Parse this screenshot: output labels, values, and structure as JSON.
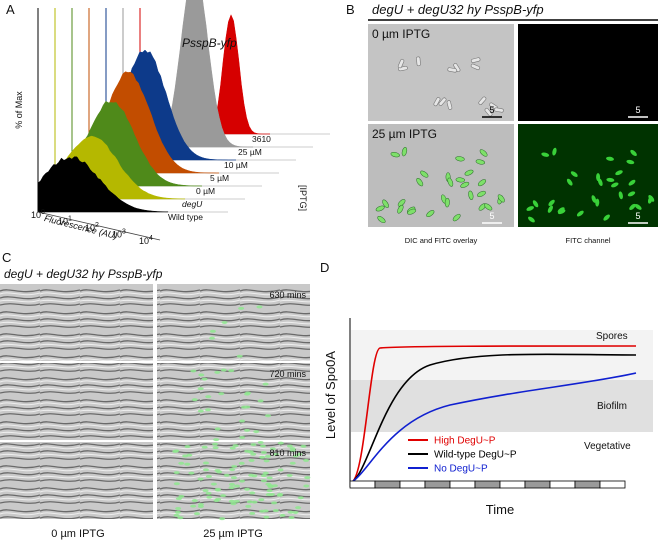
{
  "panel_a": {
    "letter": "A",
    "label": "PsspB-yfp",
    "y_axis": "% of Max",
    "x_axis": "Fluorescence (AU)",
    "x_ticks": [
      {
        "base": "10",
        "exp": "0"
      },
      {
        "base": "10",
        "exp": "1"
      },
      {
        "base": "10",
        "exp": "2"
      },
      {
        "base": "10",
        "exp": "3"
      },
      {
        "base": "10",
        "exp": "4"
      }
    ],
    "depth_labels": [
      "3610",
      "25 µM",
      "10 µM",
      "5 µM",
      "0 µM",
      "degU",
      "Wild type"
    ],
    "depth_axis": "[IPTG]"
  },
  "panel_b": {
    "letter": "B",
    "title": "degU + degU32 hy  PsspB-yfp",
    "row_labels": [
      "0 µm IPTG",
      "25 µm IPTG"
    ],
    "scale_label": "5",
    "captions": [
      "DIC and FITC overlay",
      "FITC channel"
    ]
  },
  "panel_c": {
    "letter": "C",
    "title": "degU + degU32 hy PsspB-yfp",
    "times": [
      "630 mins",
      "720 mins",
      "810 mins"
    ],
    "column_labels": [
      "0 µm IPTG",
      "25 µm IPTG"
    ]
  },
  "panel_d": {
    "letter": "D",
    "y_axis": "Level of Spo0A",
    "x_axis": "Time",
    "regions": [
      "Spores",
      "Biofilm",
      "Vegetative"
    ],
    "legend": [
      {
        "name": "High DegU~P",
        "color": "#e00000"
      },
      {
        "name": "Wild-type DegU~P",
        "color": "#000000"
      },
      {
        "name": "No DegU~P",
        "color": "#1020d0"
      }
    ]
  }
}
